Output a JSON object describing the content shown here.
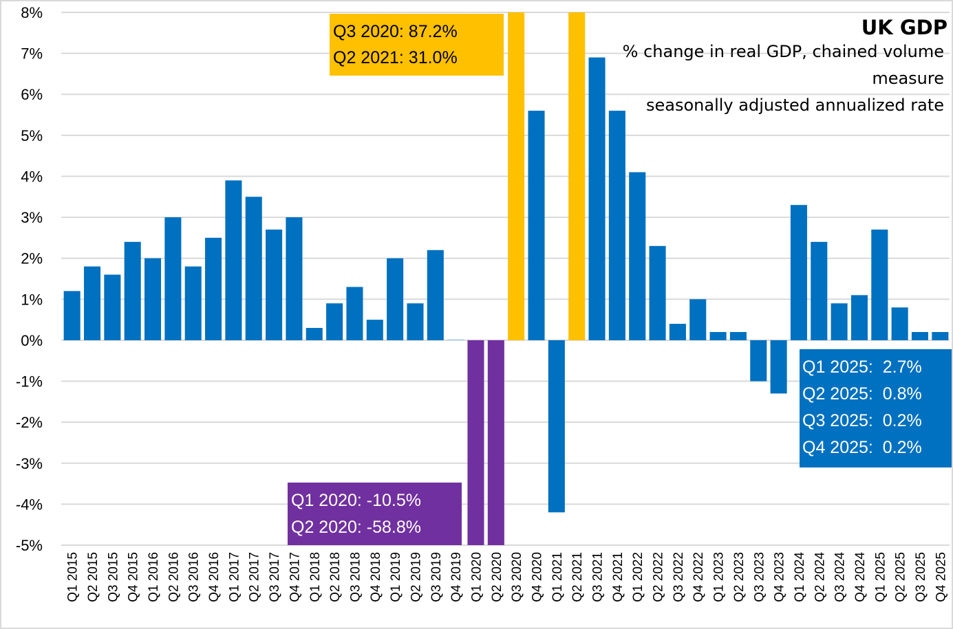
{
  "chart_data": {
    "type": "bar",
    "title": "UK GDP",
    "subtitle_lines": [
      "% change in real GDP, chained volume",
      "measure",
      "seasonally adjusted annualized rate"
    ],
    "xlabel": "",
    "ylabel": "",
    "ylim": [
      -5,
      8
    ],
    "y_ticks": [
      8,
      7,
      6,
      5,
      4,
      3,
      2,
      1,
      0,
      -1,
      -2,
      -3,
      -4,
      -5
    ],
    "y_tick_labels": [
      "8%",
      "7%",
      "6%",
      "5%",
      "4%",
      "3%",
      "2%",
      "1%",
      "0%",
      "-1%",
      "-2%",
      "-3%",
      "-4%",
      "-5%"
    ],
    "grid": true,
    "categories": [
      "Q1 2015",
      "Q2 2015",
      "Q3 2015",
      "Q4 2015",
      "Q1 2016",
      "Q2 2016",
      "Q3 2016",
      "Q4 2016",
      "Q1 2017",
      "Q2 2017",
      "Q3 2017",
      "Q4 2017",
      "Q1 2018",
      "Q2 2018",
      "Q3 2018",
      "Q4 2018",
      "Q1 2019",
      "Q2 2019",
      "Q3 2019",
      "Q4 2019",
      "Q1 2020",
      "Q2 2020",
      "Q3 2020",
      "Q4 2020",
      "Q1 2021",
      "Q2 2021",
      "Q3 2021",
      "Q4 2021",
      "Q1 2022",
      "Q2 2022",
      "Q3 2022",
      "Q4 2022",
      "Q1 2023",
      "Q2 2023",
      "Q3 2023",
      "Q4 2023",
      "Q1 2024",
      "Q2 2024",
      "Q3 2024",
      "Q4 2024",
      "Q1 2025",
      "Q2 2025",
      "Q3 2025",
      "Q4 2025"
    ],
    "series": [
      {
        "name": "% change in real GDP (SAAR)",
        "values": [
          1.2,
          1.8,
          1.6,
          2.4,
          2.0,
          3.0,
          1.8,
          2.5,
          3.9,
          3.5,
          2.7,
          3.0,
          0.3,
          0.9,
          1.3,
          0.5,
          2.0,
          0.9,
          2.2,
          0.0,
          -10.5,
          -58.8,
          87.2,
          5.6,
          -4.2,
          31.0,
          6.9,
          5.6,
          4.1,
          2.3,
          0.4,
          1.0,
          0.2,
          0.2,
          -1.0,
          -1.3,
          3.3,
          2.4,
          0.9,
          1.1,
          2.7,
          0.8,
          0.2,
          0.2
        ],
        "highlight": {
          "Q1 2020": "negative_extreme",
          "Q2 2020": "negative_extreme",
          "Q3 2020": "positive_extreme",
          "Q2 2021": "positive_extreme"
        }
      }
    ],
    "colors": {
      "default": "#0070c0",
      "positive_extreme": "#ffc000",
      "negative_extreme": "#7030a0",
      "gridline": "#d9d9d9",
      "frame": "#d9d9d9"
    },
    "annotations": [
      {
        "id": "positive-extreme-note",
        "style": "positive_extreme",
        "text_color": "#000000",
        "position": "top-center",
        "lines": [
          "Q3 2020: 87.2%",
          "Q2 2021: 31.0%"
        ]
      },
      {
        "id": "negative-extreme-note",
        "style": "negative_extreme",
        "text_color": "#ffffff",
        "position": "bottom-center",
        "lines": [
          "Q1 2020: -10.5%",
          "Q2 2020: -58.8%"
        ]
      },
      {
        "id": "latest-quarters-note",
        "style": "default",
        "text_color": "#ffffff",
        "position": "right",
        "lines": [
          "Q1 2025:  2.7%",
          "Q2 2025:  0.8%",
          "Q3 2025:  0.2%",
          "Q4 2025:  0.2%"
        ]
      }
    ],
    "legend": "none"
  }
}
